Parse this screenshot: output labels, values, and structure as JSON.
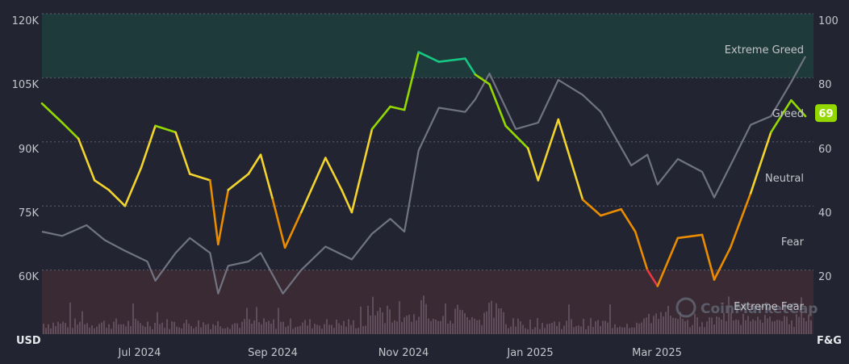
{
  "chart_data": {
    "type": "line",
    "title": "",
    "watermark": "CoinMarketCap",
    "x_ticks": [
      "Jul 2024",
      "Sep 2024",
      "Nov 2024",
      "Jan 2025",
      "Mar 2025"
    ],
    "y_left": {
      "label": "USD",
      "ticks": [
        "120K",
        "105K",
        "90K",
        "75K",
        "60K"
      ],
      "range": [
        45000,
        120000
      ]
    },
    "y_right": {
      "label": "F&G",
      "ticks": [
        "100",
        "80",
        "60",
        "40",
        "20"
      ],
      "range": [
        0,
        100
      ]
    },
    "zones": [
      {
        "name": "Extreme Greed",
        "from": 80,
        "to": 100,
        "color": "#1f3a3a"
      },
      {
        "name": "Greed",
        "from": 60,
        "to": 80,
        "color": ""
      },
      {
        "name": "Neutral",
        "from": 40,
        "to": 60,
        "color": ""
      },
      {
        "name": "Fear",
        "from": 20,
        "to": 40,
        "color": ""
      },
      {
        "name": "Extreme Fear",
        "from": 0,
        "to": 20,
        "color": "#3a2a33"
      }
    ],
    "current_value": "69",
    "series": [
      {
        "name": "",
        "axis": "left",
        "color": "#707482",
        "x": [
          "2024-05-10",
          "2024-05-20",
          "2024-06-01",
          "2024-06-10",
          "2024-06-20",
          "2024-07-01",
          "2024-07-05",
          "2024-07-15",
          "2024-07-22",
          "2024-08-01",
          "2024-08-05",
          "2024-08-10",
          "2024-08-20",
          "2024-08-26",
          "2024-09-06",
          "2024-09-15",
          "2024-09-27",
          "2024-10-10",
          "2024-10-20",
          "2024-10-29",
          "2024-11-05",
          "2024-11-12",
          "2024-11-22",
          "2024-12-05",
          "2024-12-10",
          "2024-12-17",
          "2024-12-30",
          "2025-01-10",
          "2025-01-20",
          "2025-02-01",
          "2025-02-10",
          "2025-02-25",
          "2025-03-05",
          "2025-03-10",
          "2025-03-20",
          "2025-04-01",
          "2025-04-07",
          "2025-04-15",
          "2025-04-25",
          "2025-05-05",
          "2025-05-15",
          "2025-05-22"
        ],
        "values": [
          69000,
          68000,
          70500,
          67000,
          64500,
          62000,
          57500,
          64000,
          67500,
          64000,
          54500,
          61000,
          62000,
          64000,
          54500,
          60000,
          65500,
          62500,
          68500,
          72000,
          69000,
          88000,
          98000,
          97000,
          100000,
          106000,
          93000,
          94500,
          104500,
          101000,
          97000,
          84500,
          87000,
          80000,
          86000,
          83000,
          77000,
          84500,
          94000,
          96000,
          104000,
          110000
        ]
      },
      {
        "name": "",
        "axis": "right",
        "color_scale": [
          "#ea3943",
          "#ea8c00",
          "#f3d42f",
          "#93d900",
          "#16c784"
        ],
        "x": [
          "2024-05-10",
          "2024-05-20",
          "2024-05-28",
          "2024-06-05",
          "2024-06-12",
          "2024-06-20",
          "2024-06-28",
          "2024-07-05",
          "2024-07-15",
          "2024-07-22",
          "2024-08-01",
          "2024-08-05",
          "2024-08-10",
          "2024-08-20",
          "2024-08-26",
          "2024-09-01",
          "2024-09-07",
          "2024-09-15",
          "2024-09-27",
          "2024-10-05",
          "2024-10-10",
          "2024-10-20",
          "2024-10-29",
          "2024-11-05",
          "2024-11-12",
          "2024-11-22",
          "2024-12-05",
          "2024-12-10",
          "2024-12-17",
          "2024-12-25",
          "2025-01-05",
          "2025-01-10",
          "2025-01-20",
          "2025-02-01",
          "2025-02-10",
          "2025-02-20",
          "2025-02-27",
          "2025-03-05",
          "2025-03-10",
          "2025-03-20",
          "2025-04-01",
          "2025-04-07",
          "2025-04-15",
          "2025-04-25",
          "2025-05-05",
          "2025-05-15",
          "2025-05-22"
        ],
        "values": [
          72,
          66,
          61,
          48,
          45,
          40,
          52,
          65,
          63,
          50,
          48,
          28,
          45,
          50,
          56,
          42,
          27,
          38,
          55,
          45,
          38,
          64,
          71,
          70,
          88,
          85,
          86,
          81,
          78,
          65,
          58,
          48,
          67,
          42,
          37,
          39,
          32,
          20,
          15,
          30,
          31,
          17,
          27,
          44,
          63,
          73,
          68
        ]
      }
    ]
  }
}
